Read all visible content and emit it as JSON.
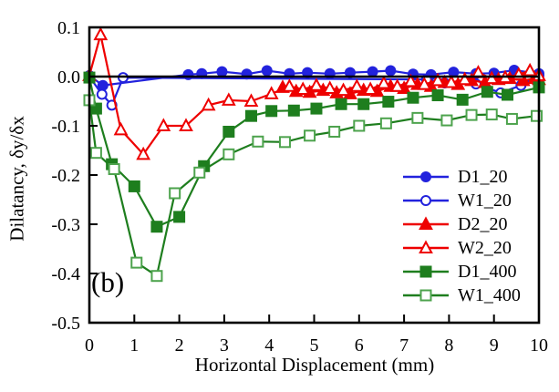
{
  "figure": {
    "panel_label": "(b)",
    "background": "#ffffff",
    "frame_color": "#000000"
  },
  "chart_data": {
    "type": "line",
    "title": "",
    "xlabel": "Horizontal Displacement (mm)",
    "ylabel": "Dilatancy, δy/δx",
    "xlim": [
      0,
      10
    ],
    "ylim": [
      -0.5,
      0.1
    ],
    "x_ticks": [
      0,
      1,
      2,
      3,
      4,
      5,
      6,
      7,
      8,
      9,
      10
    ],
    "x_tick_labels": [
      "0",
      "1",
      "2",
      "3",
      "4",
      "5",
      "6",
      "7",
      "8",
      "9",
      "10"
    ],
    "y_ticks": [
      0.1,
      0.0,
      -0.1,
      -0.2,
      -0.3,
      -0.4,
      -0.5
    ],
    "y_tick_labels": [
      "0.1",
      "0.0",
      "-0.1",
      "-0.2",
      "-0.3",
      "-0.4",
      "-0.5"
    ],
    "grid": false,
    "zero_line": true,
    "legend_position": "lower right",
    "series": [
      {
        "name": "D1_20",
        "color": "#2222dd",
        "marker": "circle",
        "filled": true,
        "points": [
          [
            0,
            0.002
          ],
          [
            0.3,
            -0.018
          ],
          [
            2.2,
            0.004
          ],
          [
            2.5,
            0.006
          ],
          [
            2.95,
            0.01
          ],
          [
            3.5,
            0.005
          ],
          [
            3.95,
            0.012
          ],
          [
            4.45,
            0.006
          ],
          [
            4.85,
            0.008
          ],
          [
            5.35,
            0.006
          ],
          [
            5.8,
            0.008
          ],
          [
            6.3,
            0.01
          ],
          [
            6.7,
            0.012
          ],
          [
            7.2,
            0.005
          ],
          [
            7.6,
            0.004
          ],
          [
            8.1,
            0.009
          ],
          [
            8.6,
            0.006
          ],
          [
            9.0,
            0.007
          ],
          [
            9.45,
            0.013
          ],
          [
            10,
            0.006
          ]
        ]
      },
      {
        "name": "W1_20",
        "color": "#2222dd",
        "marker": "circle",
        "filled": false,
        "points": [
          [
            0,
            0.0
          ],
          [
            0.28,
            -0.036
          ],
          [
            0.5,
            -0.058
          ],
          [
            0.75,
            -0.002
          ],
          [
            7.5,
            -0.006
          ],
          [
            7.9,
            -0.013
          ],
          [
            8.6,
            -0.015
          ],
          [
            9.15,
            -0.033
          ],
          [
            9.6,
            -0.018
          ],
          [
            10,
            0.002
          ]
        ]
      },
      {
        "name": "D2_20",
        "color": "#ee0000",
        "marker": "triangle",
        "filled": true,
        "points": [
          [
            4.3,
            -0.022
          ],
          [
            4.6,
            -0.03
          ],
          [
            4.9,
            -0.032
          ],
          [
            5.2,
            -0.028
          ],
          [
            5.5,
            -0.033
          ],
          [
            5.8,
            -0.035
          ],
          [
            6.1,
            -0.028
          ],
          [
            6.4,
            -0.03
          ],
          [
            6.7,
            -0.02
          ],
          [
            7.0,
            -0.024
          ],
          [
            7.3,
            -0.016
          ],
          [
            7.6,
            -0.02
          ],
          [
            7.9,
            -0.012
          ],
          [
            8.2,
            -0.016
          ],
          [
            8.5,
            -0.008
          ],
          [
            8.8,
            -0.012
          ],
          [
            9.1,
            -0.006
          ],
          [
            9.35,
            -0.004
          ],
          [
            9.65,
            -0.008
          ],
          [
            9.9,
            -0.004
          ],
          [
            10,
            -0.006
          ]
        ]
      },
      {
        "name": "W2_20",
        "color": "#ee0000",
        "marker": "triangle",
        "filled": false,
        "points": [
          [
            0,
            0.002
          ],
          [
            0.25,
            0.085
          ],
          [
            0.7,
            -0.108
          ],
          [
            1.2,
            -0.158
          ],
          [
            1.65,
            -0.1
          ],
          [
            2.15,
            -0.1
          ],
          [
            2.65,
            -0.058
          ],
          [
            3.1,
            -0.048
          ],
          [
            3.6,
            -0.05
          ],
          [
            4.05,
            -0.035
          ],
          [
            4.45,
            -0.02
          ],
          [
            4.75,
            -0.026
          ],
          [
            5.05,
            -0.018
          ],
          [
            5.35,
            -0.024
          ],
          [
            5.65,
            -0.028
          ],
          [
            5.95,
            -0.02
          ],
          [
            6.25,
            -0.026
          ],
          [
            6.55,
            -0.014
          ],
          [
            6.85,
            -0.02
          ],
          [
            7.15,
            -0.01
          ],
          [
            7.45,
            -0.016
          ],
          [
            7.75,
            -0.008
          ],
          [
            8.05,
            -0.012
          ],
          [
            8.35,
            -0.006
          ],
          [
            8.65,
            0.008
          ],
          [
            8.95,
            -0.004
          ],
          [
            9.25,
            -0.002
          ],
          [
            9.55,
            0.004
          ],
          [
            9.8,
            0.012
          ],
          [
            10,
            0.002
          ]
        ]
      },
      {
        "name": "D1_400",
        "color": "#1e7e1e",
        "marker": "square",
        "filled": true,
        "points": [
          [
            0,
            -0.002
          ],
          [
            0.15,
            -0.065
          ],
          [
            0.5,
            -0.178
          ],
          [
            1.0,
            -0.223
          ],
          [
            1.5,
            -0.305
          ],
          [
            2.0,
            -0.285
          ],
          [
            2.55,
            -0.182
          ],
          [
            3.1,
            -0.112
          ],
          [
            3.6,
            -0.08
          ],
          [
            4.05,
            -0.07
          ],
          [
            4.55,
            -0.069
          ],
          [
            5.05,
            -0.065
          ],
          [
            5.6,
            -0.056
          ],
          [
            6.1,
            -0.056
          ],
          [
            6.65,
            -0.051
          ],
          [
            7.2,
            -0.043
          ],
          [
            7.75,
            -0.038
          ],
          [
            8.3,
            -0.047
          ],
          [
            8.85,
            -0.031
          ],
          [
            9.3,
            -0.037
          ],
          [
            10,
            -0.022
          ]
        ]
      },
      {
        "name": "W1_400",
        "color": "#1e7e1e",
        "marker_color": "#4da34d",
        "marker": "square",
        "filled": false,
        "points": [
          [
            0,
            -0.048
          ],
          [
            0.15,
            -0.155
          ],
          [
            0.55,
            -0.188
          ],
          [
            1.05,
            -0.378
          ],
          [
            1.5,
            -0.405
          ],
          [
            1.9,
            -0.237
          ],
          [
            2.45,
            -0.195
          ],
          [
            3.1,
            -0.158
          ],
          [
            3.75,
            -0.132
          ],
          [
            4.35,
            -0.133
          ],
          [
            4.9,
            -0.12
          ],
          [
            5.45,
            -0.112
          ],
          [
            6.0,
            -0.1
          ],
          [
            6.6,
            -0.095
          ],
          [
            7.3,
            -0.084
          ],
          [
            7.95,
            -0.089
          ],
          [
            8.5,
            -0.078
          ],
          [
            8.95,
            -0.077
          ],
          [
            9.4,
            -0.086
          ],
          [
            9.95,
            -0.08
          ]
        ]
      }
    ]
  }
}
